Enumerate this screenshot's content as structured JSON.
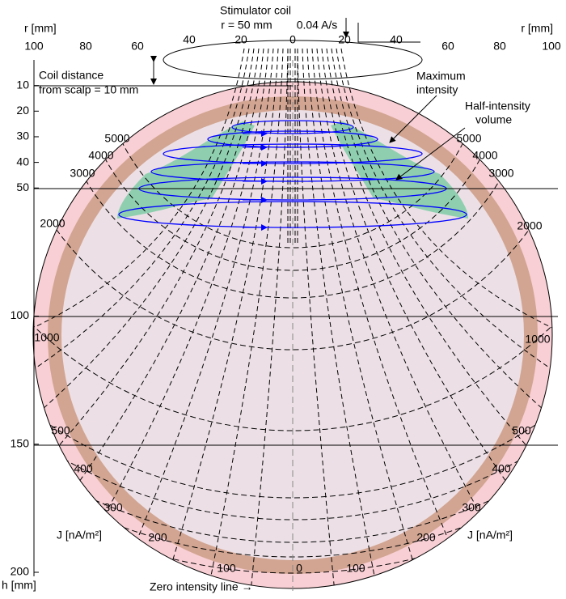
{
  "header": {
    "coil_title": "Stimulator coil",
    "coil_radius": "r = 50 mm",
    "coil_rate": "0.04 A/s"
  },
  "r_axis": {
    "label": "r [mm]",
    "outer_ticks": [
      100,
      80,
      60
    ],
    "inner_ticks": [
      40,
      20,
      0
    ]
  },
  "h_axis": {
    "label": "h [mm]",
    "ticks": [
      10,
      20,
      30,
      40,
      50,
      100,
      150,
      200
    ]
  },
  "coil_distance": [
    "Coil distance",
    "from scalp = 10 mm"
  ],
  "annotations": {
    "maximum": [
      "Maximum",
      "intensity"
    ],
    "half": [
      "Half-intensity",
      "volume"
    ],
    "zero": "Zero intensity line →"
  },
  "contours": {
    "unit": "J [nA/m²]",
    "levels": [
      5000,
      4000,
      3000,
      2000,
      1000,
      500,
      400,
      300,
      200,
      100
    ],
    "zero_level": 0
  }
}
